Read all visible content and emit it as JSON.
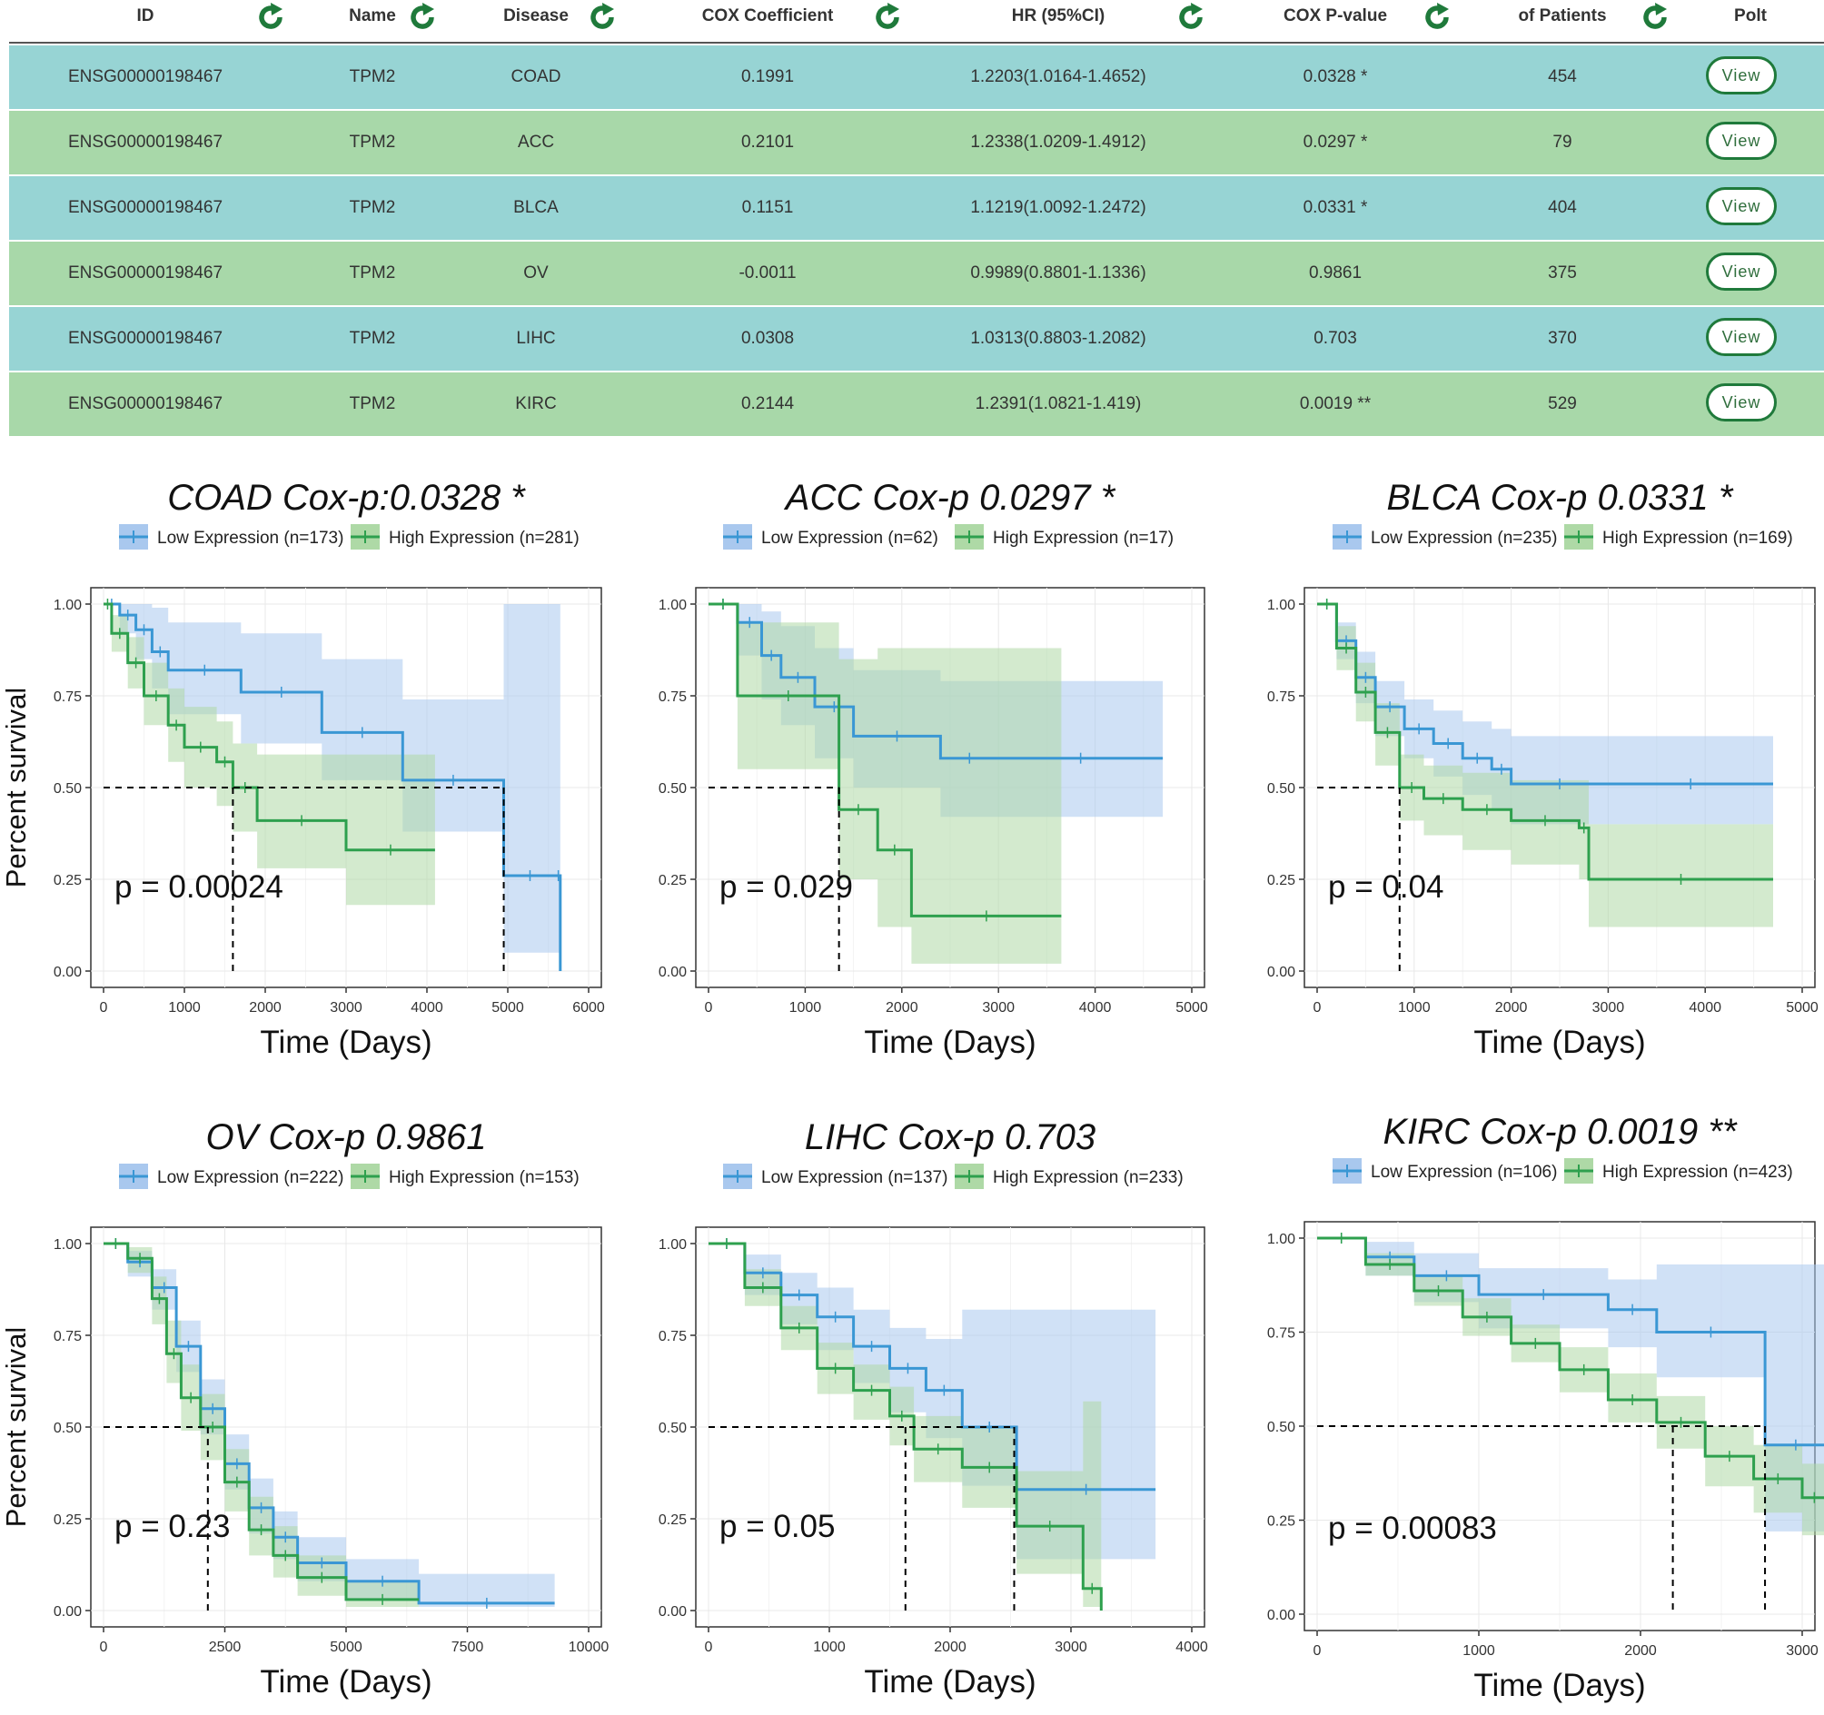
{
  "table": {
    "headers": [
      "ID",
      "Name",
      "Disease",
      "COX Coefficient",
      "HR (95%CI)",
      "COX P-value",
      "of Patients",
      "Polt"
    ],
    "colors": {
      "row_teal": "#97d4d4",
      "row_green": "#a8d8a9",
      "icon_green": "#1f7a3b"
    },
    "rows": [
      {
        "id": "ENSG00000198467",
        "name": "TPM2",
        "disease": "COAD",
        "coef": "0.1991",
        "hr": "1.2203(1.0164-1.4652)",
        "p": "0.0328 *",
        "patients": "454",
        "action": "View"
      },
      {
        "id": "ENSG00000198467",
        "name": "TPM2",
        "disease": "ACC",
        "coef": "0.2101",
        "hr": "1.2338(1.0209-1.4912)",
        "p": "0.0297 *",
        "patients": "79",
        "action": "View"
      },
      {
        "id": "ENSG00000198467",
        "name": "TPM2",
        "disease": "BLCA",
        "coef": "0.1151",
        "hr": "1.1219(1.0092-1.2472)",
        "p": "0.0331 *",
        "patients": "404",
        "action": "View"
      },
      {
        "id": "ENSG00000198467",
        "name": "TPM2",
        "disease": "OV",
        "coef": "-0.0011",
        "hr": "0.9989(0.8801-1.1336)",
        "p": "0.9861",
        "patients": "375",
        "action": "View"
      },
      {
        "id": "ENSG00000198467",
        "name": "TPM2",
        "disease": "LIHC",
        "coef": "0.0308",
        "hr": "1.0313(0.8803-1.2082)",
        "p": "0.703",
        "patients": "370",
        "action": "View"
      },
      {
        "id": "ENSG00000198467",
        "name": "TPM2",
        "disease": "KIRC",
        "coef": "0.2144",
        "hr": "1.2391(1.0821-1.419)",
        "p": "0.0019 **",
        "patients": "529",
        "action": "View"
      }
    ]
  },
  "chart_colors": {
    "low": "#3a97d4",
    "high": "#2ea04e",
    "low_band": "#a9c8ee",
    "high_band": "#aed9a6"
  },
  "chart_data": [
    {
      "type": "line",
      "title": "COAD Cox-p:0.0328 *",
      "xlabel": "Time (Days)",
      "ylabel": "Percent survival",
      "xlim": [
        0,
        6000
      ],
      "xticks": [
        0,
        1000,
        2000,
        3000,
        4000,
        5000,
        6000
      ],
      "ylim": [
        0,
        1
      ],
      "yticks": [
        "0.00",
        "0.25",
        "0.50",
        "0.75",
        "1.00"
      ],
      "pvalue": "p = 0.00024",
      "median_lines": [
        1600,
        4950
      ],
      "series": [
        {
          "name": "Low Expression (n=173)",
          "x": [
            0,
            200,
            400,
            600,
            800,
            1700,
            2700,
            3700,
            4950,
            5600,
            5650
          ],
          "y": [
            1,
            0.97,
            0.93,
            0.87,
            0.82,
            0.76,
            0.65,
            0.52,
            0.26,
            0.26,
            0
          ],
          "upper": [
            1,
            1,
            1,
            0.99,
            0.95,
            0.92,
            0.85,
            0.74,
            1,
            1,
            1
          ],
          "lower": [
            1,
            0.92,
            0.85,
            0.77,
            0.7,
            0.62,
            0.52,
            0.38,
            0.05,
            0.05,
            0.05
          ]
        },
        {
          "name": "High Expression (n=281)",
          "x": [
            0,
            100,
            300,
            500,
            800,
            1000,
            1400,
            1600,
            1900,
            3000,
            4100
          ],
          "y": [
            1,
            0.92,
            0.84,
            0.75,
            0.67,
            0.61,
            0.57,
            0.5,
            0.41,
            0.33,
            0.33
          ],
          "upper": [
            1,
            0.97,
            0.91,
            0.84,
            0.77,
            0.72,
            0.68,
            0.62,
            0.59,
            0.59,
            0.59
          ],
          "lower": [
            1,
            0.87,
            0.77,
            0.67,
            0.57,
            0.5,
            0.45,
            0.38,
            0.28,
            0.18,
            0.18
          ]
        }
      ]
    },
    {
      "type": "line",
      "title": "ACC Cox-p 0.0297 *",
      "xlabel": "Time (Days)",
      "ylabel": "",
      "xlim": [
        0,
        5000
      ],
      "xticks": [
        0,
        1000,
        2000,
        3000,
        4000,
        5000
      ],
      "ylim": [
        0,
        1
      ],
      "yticks": [
        "0.00",
        "0.25",
        "0.50",
        "0.75",
        "1.00"
      ],
      "pvalue": "p = 0.029",
      "median_lines": [
        1350
      ],
      "series": [
        {
          "name": "Low Expression (n=62)",
          "x": [
            0,
            300,
            550,
            750,
            1100,
            1500,
            2400,
            3000,
            4700
          ],
          "y": [
            1,
            0.95,
            0.86,
            0.8,
            0.72,
            0.64,
            0.58,
            0.58,
            0.58
          ],
          "upper": [
            1,
            1,
            0.98,
            0.94,
            0.88,
            0.82,
            0.79,
            0.79,
            0.79
          ],
          "lower": [
            1,
            0.86,
            0.74,
            0.67,
            0.58,
            0.5,
            0.42,
            0.42,
            0.42
          ]
        },
        {
          "name": "High Expression (n=17)",
          "x": [
            0,
            300,
            1350,
            1750,
            2100,
            3650
          ],
          "y": [
            1,
            0.75,
            0.44,
            0.33,
            0.15,
            0.15
          ],
          "upper": [
            1,
            0.95,
            0.85,
            0.88,
            0.88,
            0.88
          ],
          "lower": [
            1,
            0.55,
            0.25,
            0.12,
            0.02,
            0.02
          ]
        }
      ]
    },
    {
      "type": "line",
      "title": "BLCA Cox-p 0.0331 *",
      "xlabel": "Time (Days)",
      "ylabel": "",
      "xlim": [
        0,
        5000
      ],
      "xticks": [
        0,
        1000,
        2000,
        3000,
        4000,
        5000
      ],
      "ylim": [
        0,
        1
      ],
      "yticks": [
        "0.00",
        "0.25",
        "0.50",
        "0.75",
        "1.00"
      ],
      "pvalue": "p = 0.04",
      "median_lines": [
        850
      ],
      "series": [
        {
          "name": "Low Expression (n=235)",
          "x": [
            0,
            200,
            400,
            600,
            900,
            1200,
            1500,
            1800,
            2000,
            3000,
            4700
          ],
          "y": [
            1,
            0.9,
            0.8,
            0.72,
            0.66,
            0.62,
            0.58,
            0.55,
            0.51,
            0.51,
            0.51
          ],
          "upper": [
            1,
            0.95,
            0.87,
            0.79,
            0.74,
            0.71,
            0.68,
            0.66,
            0.64,
            0.64,
            0.64
          ],
          "lower": [
            1,
            0.85,
            0.73,
            0.64,
            0.58,
            0.53,
            0.48,
            0.44,
            0.4,
            0.4,
            0.4
          ]
        },
        {
          "name": "High Expression (n=169)",
          "x": [
            0,
            200,
            400,
            600,
            850,
            1100,
            1500,
            2000,
            2700,
            2800,
            4700
          ],
          "y": [
            1,
            0.88,
            0.76,
            0.65,
            0.5,
            0.47,
            0.44,
            0.41,
            0.39,
            0.25,
            0.25
          ],
          "upper": [
            1,
            0.94,
            0.84,
            0.73,
            0.59,
            0.56,
            0.54,
            0.52,
            0.52,
            0.4,
            0.4
          ],
          "lower": [
            1,
            0.82,
            0.68,
            0.56,
            0.41,
            0.37,
            0.33,
            0.29,
            0.25,
            0.12,
            0.12
          ]
        }
      ]
    },
    {
      "type": "line",
      "title": "OV Cox-p 0.9861",
      "xlabel": "Time (Days)",
      "ylabel": "Percent survival",
      "xlim": [
        0,
        10000
      ],
      "xticks": [
        0,
        2500,
        5000,
        7500,
        10000
      ],
      "ylim": [
        0,
        1
      ],
      "yticks": [
        "0.00",
        "0.25",
        "0.50",
        "0.75",
        "1.00"
      ],
      "pvalue": "p = 0.23",
      "median_lines": [
        2150
      ],
      "series": [
        {
          "name": "Low Expression (n=222)",
          "x": [
            0,
            500,
            1000,
            1500,
            2000,
            2500,
            3000,
            3500,
            4000,
            5000,
            6500,
            9300
          ],
          "y": [
            1,
            0.95,
            0.88,
            0.72,
            0.55,
            0.4,
            0.28,
            0.2,
            0.13,
            0.08,
            0.02,
            0.02
          ],
          "upper": [
            1,
            0.98,
            0.93,
            0.79,
            0.63,
            0.48,
            0.36,
            0.27,
            0.2,
            0.14,
            0.1,
            0.1
          ],
          "lower": [
            1,
            0.91,
            0.82,
            0.65,
            0.48,
            0.33,
            0.21,
            0.14,
            0.08,
            0.03,
            0.01,
            0.01
          ]
        },
        {
          "name": "High Expression (n=153)",
          "x": [
            0,
            500,
            1000,
            1300,
            1600,
            2000,
            2500,
            3000,
            3500,
            4000,
            5000,
            6500
          ],
          "y": [
            1,
            0.96,
            0.85,
            0.7,
            0.58,
            0.5,
            0.35,
            0.22,
            0.15,
            0.09,
            0.03,
            0.03
          ],
          "upper": [
            1,
            0.99,
            0.91,
            0.79,
            0.67,
            0.59,
            0.44,
            0.31,
            0.23,
            0.15,
            0.08,
            0.08
          ],
          "lower": [
            1,
            0.92,
            0.78,
            0.62,
            0.49,
            0.41,
            0.27,
            0.15,
            0.09,
            0.04,
            0.01,
            0.01
          ]
        }
      ]
    },
    {
      "type": "line",
      "title": "LIHC Cox-p 0.703",
      "xlabel": "Time (Days)",
      "ylabel": "",
      "xlim": [
        0,
        4000
      ],
      "xticks": [
        0,
        1000,
        2000,
        3000,
        4000
      ],
      "ylim": [
        0,
        1
      ],
      "yticks": [
        "0.00",
        "0.25",
        "0.50",
        "0.75",
        "1.00"
      ],
      "pvalue": "p = 0.05",
      "median_lines": [
        1630,
        2530
      ],
      "series": [
        {
          "name": "Low Expression (n=137)",
          "x": [
            0,
            300,
            600,
            900,
            1200,
            1500,
            1800,
            2100,
            2550,
            3700
          ],
          "y": [
            1,
            0.92,
            0.86,
            0.8,
            0.72,
            0.66,
            0.6,
            0.5,
            0.33,
            0.33
          ],
          "upper": [
            1,
            0.97,
            0.92,
            0.88,
            0.82,
            0.77,
            0.74,
            0.82,
            0.82,
            0.82
          ],
          "lower": [
            1,
            0.86,
            0.78,
            0.71,
            0.62,
            0.54,
            0.47,
            0.34,
            0.14,
            0.14
          ]
        },
        {
          "name": "High Expression (n=233)",
          "x": [
            0,
            300,
            600,
            900,
            1200,
            1500,
            1700,
            2100,
            2550,
            3100,
            3250
          ],
          "y": [
            1,
            0.88,
            0.77,
            0.66,
            0.6,
            0.53,
            0.44,
            0.39,
            0.23,
            0.06,
            0
          ],
          "upper": [
            1,
            0.93,
            0.83,
            0.73,
            0.67,
            0.61,
            0.53,
            0.5,
            0.38,
            0.57,
            0.57
          ],
          "lower": [
            1,
            0.83,
            0.71,
            0.59,
            0.52,
            0.45,
            0.35,
            0.28,
            0.1,
            0.01,
            0.01
          ]
        }
      ]
    },
    {
      "type": "line",
      "title": "KIRC Cox-p 0.0019 **",
      "xlabel": "Time (Days)",
      "ylabel": "",
      "xlim": [
        0,
        3000
      ],
      "xticks": [
        0,
        1000,
        2000,
        3000
      ],
      "ylim": [
        0,
        1
      ],
      "yticks": [
        "0.00",
        "0.25",
        "0.50",
        "0.75",
        "1.00"
      ],
      "pvalue": "p = 0.00083",
      "median_lines": [
        2200,
        2770
      ],
      "series": [
        {
          "name": "Low Expression (n=106)",
          "x": [
            0,
            300,
            600,
            1000,
            1800,
            2100,
            2770,
            3150
          ],
          "y": [
            1,
            0.95,
            0.9,
            0.85,
            0.81,
            0.75,
            0.45,
            0.45
          ],
          "upper": [
            1,
            0.99,
            0.96,
            0.92,
            0.89,
            0.93,
            0.93,
            0.93
          ],
          "lower": [
            1,
            0.9,
            0.83,
            0.76,
            0.71,
            0.63,
            0.22,
            0.22
          ]
        },
        {
          "name": "High Expression (n=423)",
          "x": [
            0,
            300,
            600,
            900,
            1200,
            1500,
            1800,
            2100,
            2400,
            2700,
            3000,
            3150
          ],
          "y": [
            1,
            0.93,
            0.86,
            0.79,
            0.72,
            0.65,
            0.57,
            0.51,
            0.42,
            0.36,
            0.31,
            0.31
          ],
          "upper": [
            1,
            0.96,
            0.9,
            0.84,
            0.77,
            0.71,
            0.64,
            0.58,
            0.5,
            0.45,
            0.4,
            0.4
          ],
          "lower": [
            1,
            0.9,
            0.82,
            0.74,
            0.67,
            0.59,
            0.51,
            0.44,
            0.34,
            0.27,
            0.21,
            0.21
          ]
        }
      ]
    }
  ]
}
